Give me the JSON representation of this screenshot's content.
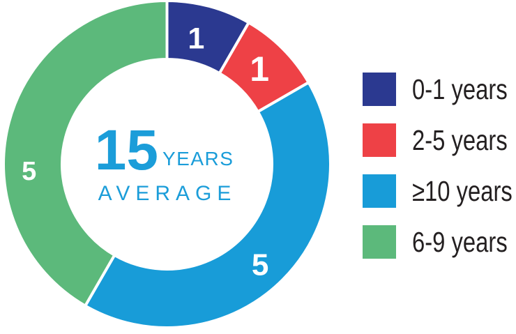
{
  "chart_data": {
    "type": "donut",
    "total": 12,
    "start_angle_deg": 0,
    "direction": "clockwise",
    "background_color": "#ffffff",
    "slices": [
      {
        "label": "0-1 years",
        "value": 1,
        "color": "#2b3990",
        "label_angle_deg": 13,
        "label_radius": 186,
        "label_size": 43
      },
      {
        "label": "2-5 years",
        "value": 1,
        "color": "#ee4146",
        "label_angle_deg": 44,
        "label_radius": 191,
        "label_size": 50
      },
      {
        "label": "≥10 years",
        "value": 5,
        "color": "#189cd8",
        "label_angle_deg": 137,
        "label_radius": 196,
        "label_size": 44
      },
      {
        "label": "6-9 years",
        "value": 5,
        "color": "#5cb97b",
        "label_angle_deg": 267.5,
        "label_radius": 198,
        "label_size": 38
      }
    ],
    "value_label_color": "#ffffff",
    "center": {
      "value": "15",
      "unit_label": "YEARS",
      "caption": "AVERAGE",
      "text_color": "#1b9dd9"
    },
    "legend": {
      "position": "right",
      "text_color": "#231f20"
    }
  }
}
